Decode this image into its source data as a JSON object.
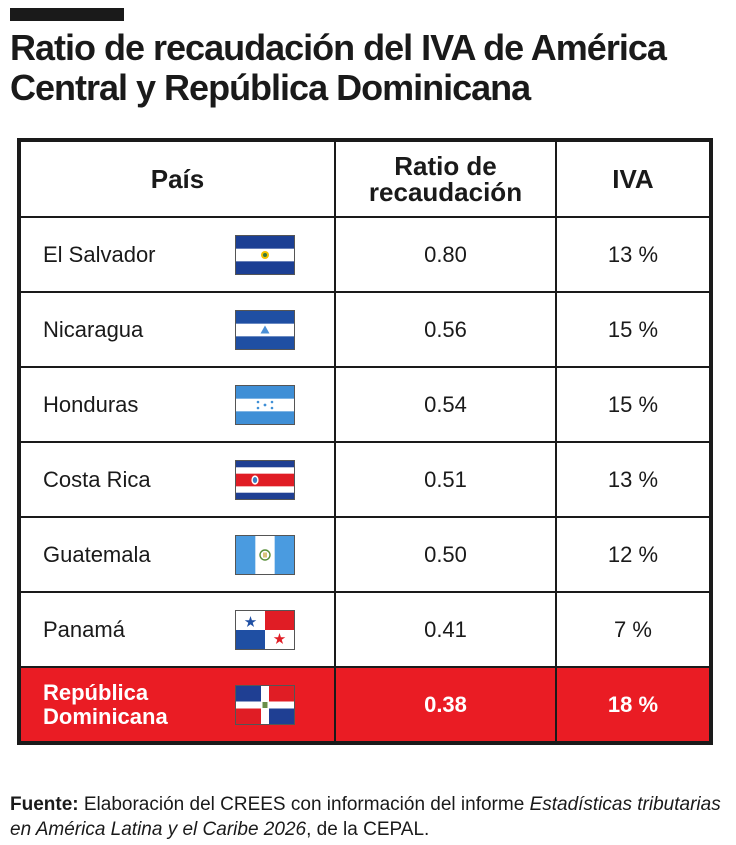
{
  "title": "Ratio de recaudación del IVA de América Central y República Dominicana",
  "colors": {
    "highlight": "#ea1c24",
    "border": "#1a1a1a"
  },
  "chart_data": {
    "type": "table",
    "columns": [
      "País",
      "Ratio de recaudación",
      "IVA"
    ],
    "rows": [
      {
        "country": "El Salvador",
        "flag": "el-salvador-flag-icon",
        "ratio": "0.80",
        "iva": "13 %"
      },
      {
        "country": "Nicaragua",
        "flag": "nicaragua-flag-icon",
        "ratio": "0.56",
        "iva": "15 %"
      },
      {
        "country": "Honduras",
        "flag": "honduras-flag-icon",
        "ratio": "0.54",
        "iva": "15 %"
      },
      {
        "country": "Costa Rica",
        "flag": "costa-rica-flag-icon",
        "ratio": "0.51",
        "iva": "13 %"
      },
      {
        "country": "Guatemala",
        "flag": "guatemala-flag-icon",
        "ratio": "0.50",
        "iva": "12 %"
      },
      {
        "country": "Panamá",
        "flag": "panama-flag-icon",
        "ratio": "0.41",
        "iva": "7 %"
      },
      {
        "country": "República Dominicana",
        "flag": "dominican-republic-flag-icon",
        "ratio": "0.38",
        "iva": "18 %",
        "highlighted": true
      }
    ]
  },
  "source": {
    "label": "Fuente:",
    "text_before": " Elaboración del CREES con información del informe ",
    "italic": "Estadísticas tributarias en América Latina y el Caribe 2026",
    "text_after": ", de la CEPAL."
  }
}
